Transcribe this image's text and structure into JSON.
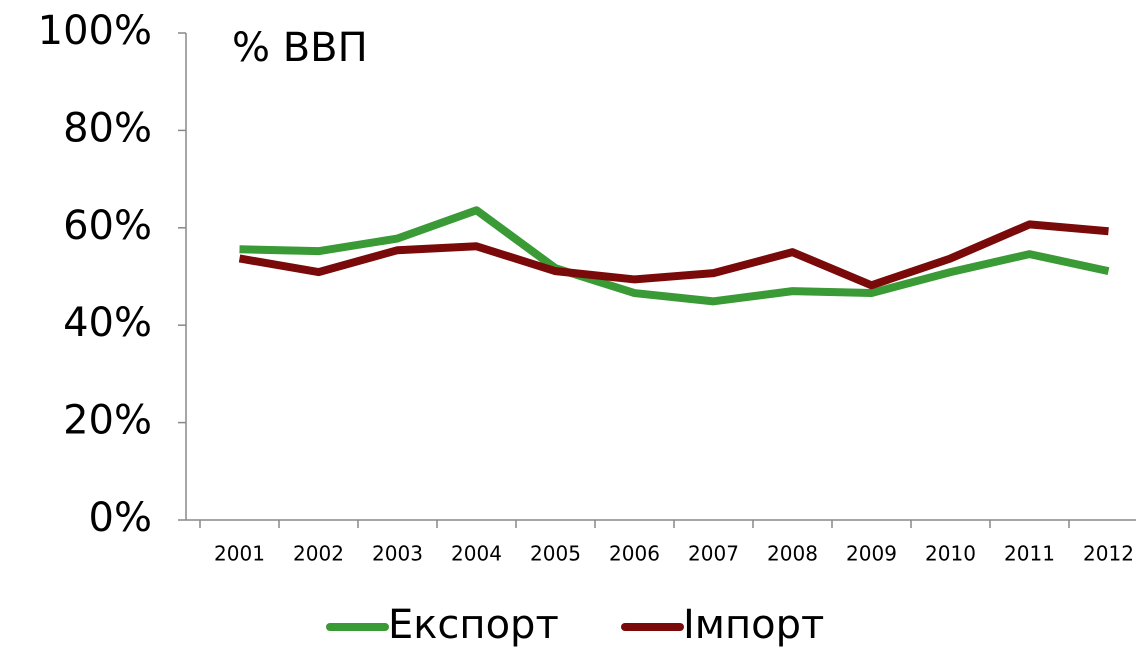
{
  "chart_data": {
    "type": "line",
    "annotation": "% ВВП",
    "categories": [
      "2001",
      "2002",
      "2003",
      "2004",
      "2005",
      "2006",
      "2007",
      "2008",
      "2009",
      "2010",
      "2011",
      "2012"
    ],
    "series": [
      {
        "name": "Експорт",
        "color": "#3a9a35",
        "values": [
          55.6,
          55.2,
          57.8,
          63.6,
          51.7,
          46.6,
          44.9,
          47,
          46.6,
          50.9,
          54.6,
          51.1
        ]
      },
      {
        "name": "Імпорт",
        "color": "#7a0a0a",
        "values": [
          53.7,
          50.9,
          55.4,
          56.2,
          51.1,
          49.4,
          50.7,
          55,
          48.2,
          53.7,
          60.7,
          59.3
        ]
      }
    ],
    "ylim": [
      0,
      100
    ],
    "yticks": [
      {
        "value": 0,
        "label": "0%"
      },
      {
        "value": 20,
        "label": "20%"
      },
      {
        "value": 40,
        "label": "40%"
      },
      {
        "value": 60,
        "label": "60%"
      },
      {
        "value": 80,
        "label": "80%"
      },
      {
        "value": 100,
        "label": "100%"
      }
    ],
    "legend": "bottom"
  }
}
